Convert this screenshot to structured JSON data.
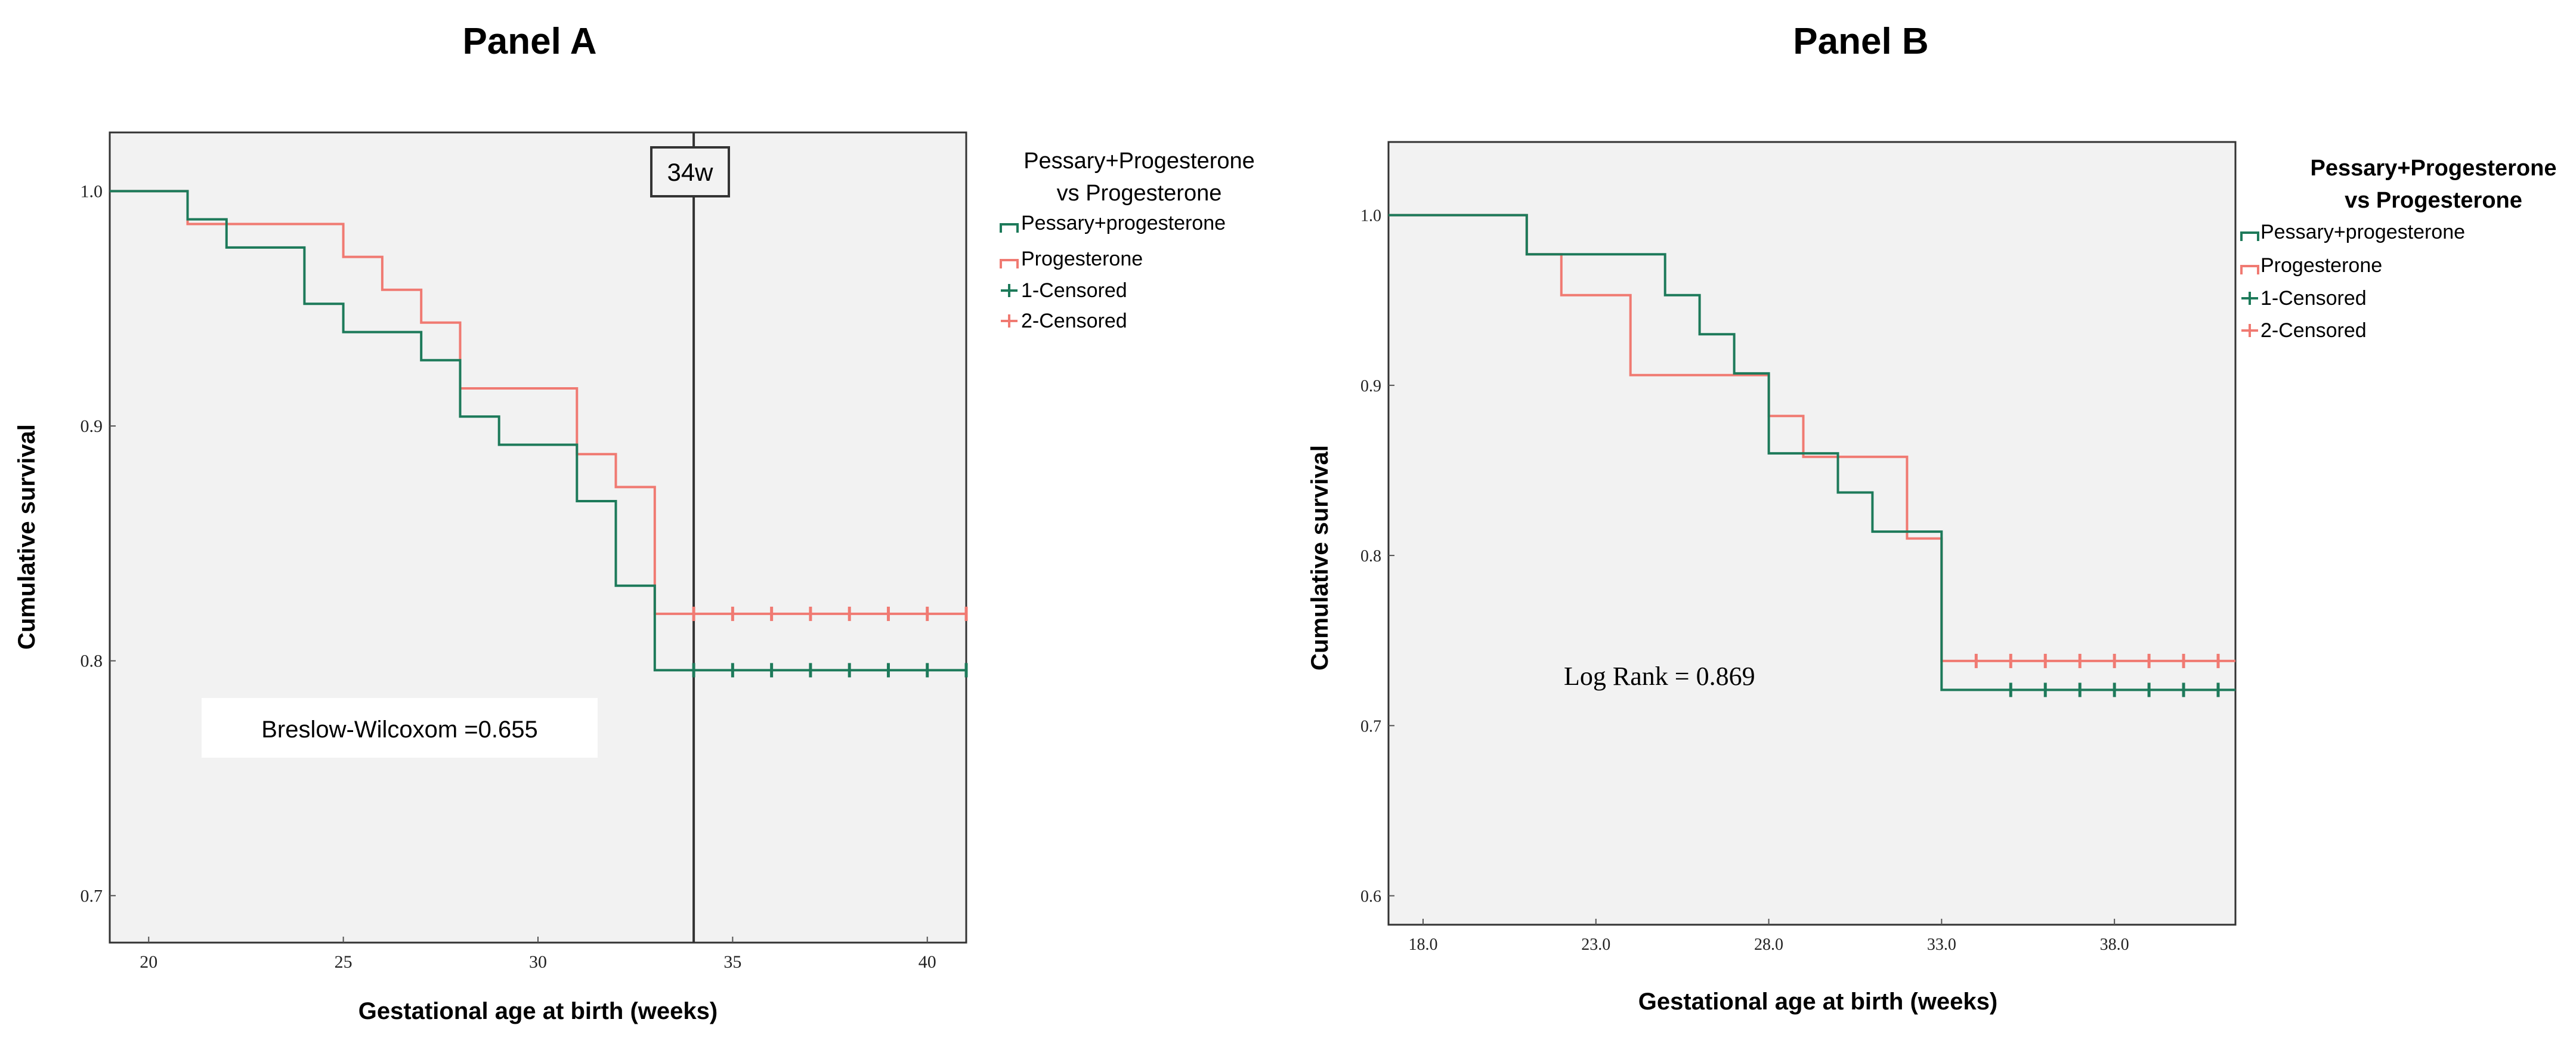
{
  "colors": {
    "series1": "#1d7a5a",
    "series2": "#f07a72",
    "plot_bg": "#f2f2f2",
    "frame": "#333333"
  },
  "chart_data": [
    {
      "type": "line",
      "step": true,
      "panel_title": "Panel A",
      "xlabel": "Gestational age at birth (weeks)",
      "ylabel": "Cumulative  survival",
      "xlim": [
        19,
        41
      ],
      "ylim": [
        0.68,
        1.025
      ],
      "xticks": [
        20,
        25,
        30,
        35,
        40
      ],
      "xtick_labels": [
        "20",
        "25",
        "30",
        "35",
        "40"
      ],
      "yticks": [
        0.7,
        0.8,
        0.9,
        1.0
      ],
      "ytick_labels": [
        "0.7",
        "0.8",
        "0.9",
        "1.0"
      ],
      "legend": {
        "title_lines": [
          "Pessary+Progesterone",
          "vs Progesterone"
        ],
        "items": [
          "Pessary+progesterone",
          "Progesterone",
          "1-Censored",
          "2-Censored"
        ]
      },
      "annotation": "Breslow-Wilcoxom =0.655",
      "vline": {
        "x": 34,
        "label": "34w"
      },
      "series": [
        {
          "name": "Pessary+progesterone",
          "x": [
            19,
            21,
            22,
            24,
            25,
            27,
            28,
            29,
            31,
            32,
            33,
            41
          ],
          "y": [
            1.0,
            0.988,
            0.976,
            0.952,
            0.94,
            0.928,
            0.904,
            0.892,
            0.868,
            0.832,
            0.796,
            0.796
          ],
          "censored_x": [
            34,
            35,
            36,
            37,
            38,
            39,
            40,
            41
          ]
        },
        {
          "name": "Progesterone",
          "x": [
            19,
            21,
            25,
            26,
            27,
            28,
            31,
            32,
            33,
            41
          ],
          "y": [
            1.0,
            0.986,
            0.972,
            0.958,
            0.944,
            0.916,
            0.888,
            0.874,
            0.82,
            0.82
          ],
          "censored_x": [
            34,
            35,
            36,
            37,
            38,
            39,
            40,
            41
          ]
        }
      ]
    },
    {
      "type": "line",
      "step": true,
      "panel_title": "Panel B",
      "xlabel": "Gestational age at birth (weeks)",
      "ylabel": "Cumulative   survival",
      "xlim": [
        17,
        41.5
      ],
      "ylim": [
        0.583,
        1.043
      ],
      "xticks": [
        18,
        23,
        28,
        33,
        38
      ],
      "xtick_labels": [
        "18.0",
        "23.0",
        "28.0",
        "33.0",
        "38.0"
      ],
      "yticks": [
        0.6,
        0.7,
        0.8,
        0.9,
        1.0
      ],
      "ytick_labels": [
        "0.6",
        "0.7",
        "0.8",
        "0.9",
        "1.0"
      ],
      "legend": {
        "title_lines": [
          "Pessary+Progesterone",
          "vs Progesterone"
        ],
        "items": [
          "Pessary+progesterone",
          "Progesterone",
          "1-Censored",
          "2-Censored"
        ]
      },
      "annotation": "Log Rank = 0.869",
      "series": [
        {
          "name": "Pessary+progesterone",
          "x": [
            17,
            21,
            25,
            26,
            27,
            28,
            30,
            31,
            33,
            41.5
          ],
          "y": [
            1.0,
            0.977,
            0.953,
            0.93,
            0.907,
            0.86,
            0.837,
            0.814,
            0.721,
            0.721
          ],
          "censored_x": [
            35,
            36,
            37,
            38,
            39,
            40,
            41
          ]
        },
        {
          "name": "Progesterone",
          "x": [
            17,
            21,
            22,
            24,
            28,
            29,
            32,
            33,
            41.5
          ],
          "y": [
            1.0,
            0.977,
            0.953,
            0.906,
            0.882,
            0.858,
            0.81,
            0.738,
            0.738
          ],
          "censored_x": [
            34,
            35,
            36,
            37,
            38,
            39,
            40,
            41
          ]
        }
      ]
    }
  ]
}
